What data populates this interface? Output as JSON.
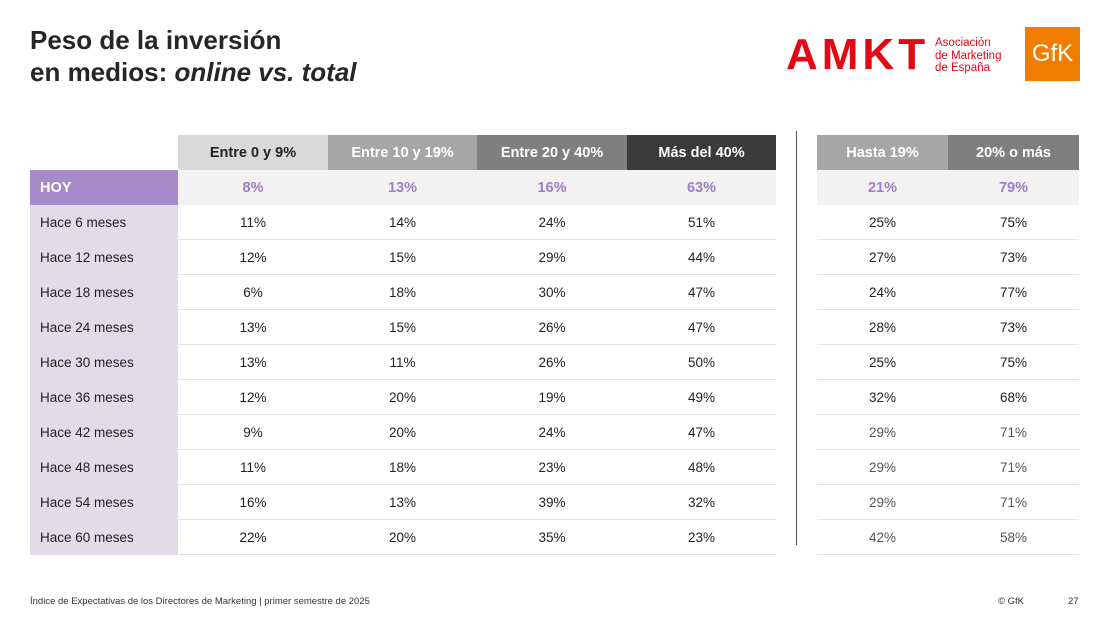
{
  "title": {
    "line1": "Peso de la inversión",
    "line2": "en medios: ",
    "line2_italic": "online vs. total"
  },
  "logo": {
    "amkt": "AMKT",
    "assoc_lines": [
      "Asociación",
      "de Marketing",
      "de España"
    ],
    "gfk": "GfK"
  },
  "table": {
    "headers": [
      "Entre 0 y 9%",
      "Entre 10 y 19%",
      "Entre 20 y 40%",
      "Más del 40%"
    ],
    "headers2": [
      "Hasta 19%",
      "20% o más"
    ],
    "rows": [
      [
        "HOY",
        "8%",
        "13%",
        "16%",
        "63%",
        "21%",
        "79%"
      ],
      [
        "Hace 6 meses",
        "11%",
        "14%",
        "24%",
        "51%",
        "25%",
        "75%"
      ],
      [
        "Hace 12 meses",
        "12%",
        "15%",
        "29%",
        "44%",
        "27%",
        "73%"
      ],
      [
        "Hace 18 meses",
        "6%",
        "18%",
        "30%",
        "47%",
        "24%",
        "77%"
      ],
      [
        "Hace 24 meses",
        "13%",
        "15%",
        "26%",
        "47%",
        "28%",
        "73%"
      ],
      [
        "Hace 30 meses",
        "13%",
        "11%",
        "26%",
        "50%",
        "25%",
        "75%"
      ],
      [
        "Hace 36 meses",
        "12%",
        "20%",
        "19%",
        "49%",
        "32%",
        "68%"
      ],
      [
        "Hace 42 meses",
        "9%",
        "20%",
        "24%",
        "47%",
        "29%",
        "71%"
      ],
      [
        "Hace 48 meses",
        "11%",
        "18%",
        "23%",
        "48%",
        "29%",
        "71%"
      ],
      [
        "Hace 54 meses",
        "16%",
        "13%",
        "39%",
        "32%",
        "29%",
        "71%"
      ],
      [
        "Hace 60 meses",
        "22%",
        "20%",
        "35%",
        "23%",
        "42%",
        "58%"
      ]
    ]
  },
  "footer": {
    "source": "Índice de Expectativas de los Directores de Marketing |  primer semestre de 2025",
    "copyright": "© GfK",
    "page": "27"
  }
}
